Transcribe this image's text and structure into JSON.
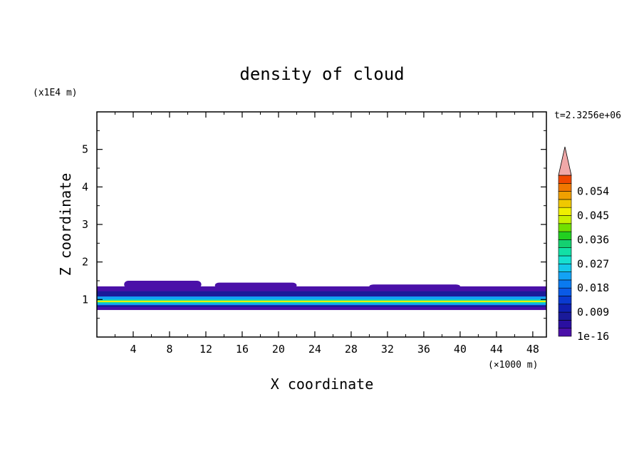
{
  "chart_data": {
    "type": "heatmap",
    "title": "density of cloud",
    "xlabel": "X coordinate",
    "ylabel": "Z coordinate",
    "x_unit": "(×1000 m)",
    "y_unit": "(x1E4 m)",
    "time_label": "t=2.3256e+06",
    "xlim": [
      0,
      49.5
    ],
    "ylim": [
      0,
      6
    ],
    "x_ticks": [
      "4",
      "8",
      "12",
      "16",
      "20",
      "24",
      "28",
      "32",
      "36",
      "40",
      "44",
      "48"
    ],
    "x_tick_values": [
      4,
      8,
      12,
      16,
      20,
      24,
      28,
      32,
      36,
      40,
      44,
      48
    ],
    "y_ticks": [
      "1",
      "2",
      "3",
      "4",
      "5"
    ],
    "y_tick_values": [
      1,
      2,
      3,
      4,
      5
    ],
    "grid": false,
    "legend": "right colorbar",
    "colorbar": {
      "labels": [
        "0.054",
        "0.045",
        "0.036",
        "0.027",
        "0.018",
        "0.009",
        "1e-16"
      ],
      "label_values": [
        0.054,
        0.045,
        0.036,
        0.027,
        0.018,
        0.009,
        1e-16
      ],
      "levels": [
        1e-16,
        0.003,
        0.006,
        0.009,
        0.012,
        0.015,
        0.018,
        0.021,
        0.024,
        0.027,
        0.03,
        0.033,
        0.036,
        0.039,
        0.042,
        0.045,
        0.048,
        0.051,
        0.054,
        0.057,
        0.06
      ],
      "colors": [
        "#4a10a8",
        "#2a0fa0",
        "#1a1a9a",
        "#1020b0",
        "#0a3ad0",
        "#0a5ae6",
        "#0a7af0",
        "#13a2f5",
        "#14c8ea",
        "#16e0d0",
        "#12e0a6",
        "#14d070",
        "#22d020",
        "#70e000",
        "#c8f000",
        "#f0f000",
        "#f0c800",
        "#f0a000",
        "#f07800",
        "#f04800",
        "#e81a10"
      ],
      "extend_color": "#f0a8a8"
    },
    "bands": [
      {
        "z": [
          0.72,
          1.35
        ],
        "level": 0,
        "note": "outer cloud layer"
      },
      {
        "z": [
          0.8,
          1.22
        ],
        "level": 2
      },
      {
        "z": [
          0.85,
          1.08
        ],
        "level": 7
      },
      {
        "z": [
          0.9,
          1.0
        ],
        "level": 10
      },
      {
        "z": [
          0.93,
          0.97
        ],
        "level": 15
      }
    ],
    "patches": [
      {
        "x": [
          3,
          11.5
        ],
        "z": [
          1.3,
          1.5
        ],
        "level": 0
      },
      {
        "x": [
          13,
          22
        ],
        "z": [
          1.3,
          1.45
        ],
        "level": 0
      },
      {
        "x": [
          30,
          40
        ],
        "z": [
          1.3,
          1.4
        ],
        "level": 0
      }
    ]
  }
}
